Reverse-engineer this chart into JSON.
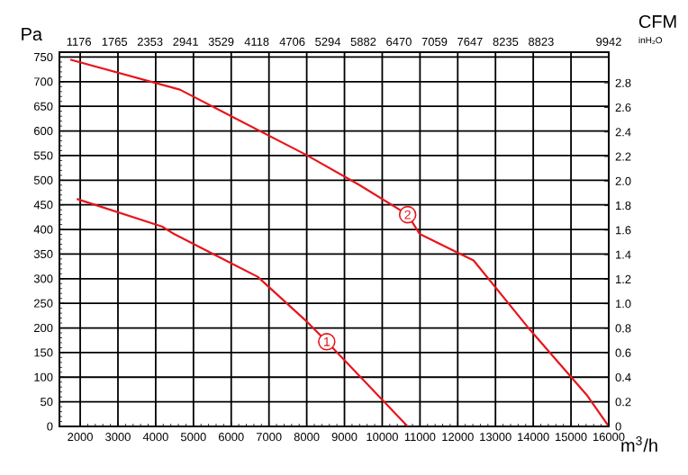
{
  "chart_data": {
    "type": "line",
    "xlabel": "m$^{3}$/h",
    "ylabel": "Pa",
    "x2label": "CFM",
    "y2label": "inH₂O",
    "xlim": [
      1450,
      16000
    ],
    "ylim": [
      0,
      760
    ],
    "xticks": [
      2000,
      3000,
      4000,
      5000,
      6000,
      7000,
      8000,
      9000,
      10000,
      11000,
      12000,
      13000,
      14000,
      15000,
      16000
    ],
    "yticks": [
      0,
      50,
      100,
      150,
      200,
      250,
      300,
      350,
      400,
      450,
      500,
      550,
      600,
      650,
      700,
      750
    ],
    "x2lim": [
      853,
      9942
    ],
    "x2ticks": [
      1176,
      1765,
      2353,
      2941,
      3529,
      4118,
      4706,
      5294,
      5882,
      6470,
      7059,
      7647,
      8235,
      8823,
      9942
    ],
    "y2lim": [
      0,
      3.051
    ],
    "y2ticks": [
      {
        "value": 0,
        "label": "0"
      },
      0.2,
      0.4,
      0.6,
      0.8,
      {
        "value": 1.0,
        "label": "1.0"
      },
      1.2,
      1.4,
      1.6,
      1.8,
      {
        "value": 2.0,
        "label": "2.0"
      },
      2.2,
      2.4,
      2.6,
      2.8
    ],
    "grid": true,
    "series": [
      {
        "color": "#e8141b",
        "x": [
          1910,
          4164,
          4483,
          6700,
          7974,
          8530,
          10673
        ],
        "values": [
          462,
          406,
          391,
          304,
          215,
          172,
          0
        ]
      },
      {
        "color": "#e8141b",
        "x": [
          1736,
          4640,
          7974,
          9400,
          10673,
          10990,
          12420,
          13850,
          15436,
          16000
        ],
        "values": [
          745,
          684,
          552,
          490,
          430,
          391,
          337,
          202,
          62,
          0
        ]
      }
    ],
    "annotations": [
      {
        "text": "1",
        "x": 8530,
        "y": 172
      },
      {
        "text": "2",
        "x": 10673,
        "y": 430
      }
    ]
  }
}
